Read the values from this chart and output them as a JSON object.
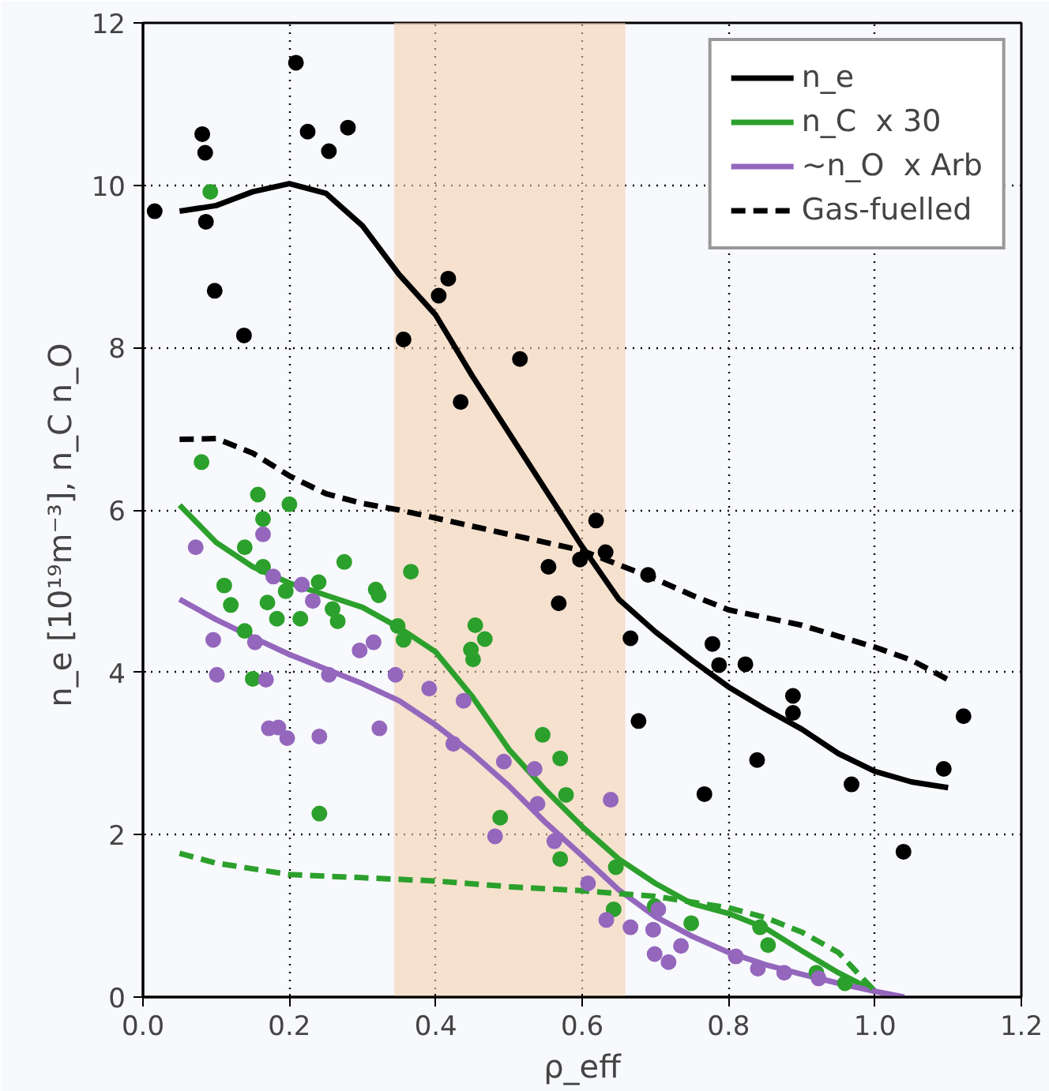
{
  "chart_data": {
    "type": "line",
    "xlabel": "ρ_eff",
    "ylabel": "n_e [10¹⁹m⁻³],   n_C  n_O",
    "xlim": [
      0,
      1.2
    ],
    "ylim": [
      0,
      12
    ],
    "xticks": [
      {
        "value": 0,
        "label": "0.0"
      },
      0.2,
      0.4,
      0.6,
      0.8,
      {
        "value": 1,
        "label": "1.0"
      },
      {
        "value": 1.2,
        "label": "1.2"
      }
    ],
    "yticks": [
      0,
      2,
      4,
      6,
      8,
      10,
      12
    ],
    "grid": true,
    "legend": "top right",
    "line_style": "solid",
    "marker": "none",
    "bands": [
      {
        "axis": "x",
        "from": 0.343,
        "to": 0.659,
        "color": "#f5d1b1"
      }
    ],
    "series": [
      {
        "type": "scatter",
        "marker": "circle",
        "color": "#000000",
        "x": [
          0.016,
          0.081,
          0.085,
          0.086,
          0.098,
          0.138,
          0.209,
          0.225,
          0.254,
          0.28,
          0.356,
          0.404,
          0.417,
          0.515,
          0.434,
          0.619,
          0.632,
          0.597,
          0.554,
          0.568,
          0.69,
          0.666,
          0.677,
          0.778,
          0.787,
          0.823,
          0.767,
          0.839,
          0.888,
          0.888,
          0.968,
          1.039,
          1.094,
          1.121
        ],
        "values": [
          9.68,
          10.63,
          10.4,
          9.55,
          8.7,
          8.15,
          11.51,
          10.66,
          10.42,
          10.71,
          8.1,
          8.64,
          8.85,
          7.86,
          7.33,
          5.87,
          5.48,
          5.39,
          5.3,
          4.85,
          5.2,
          4.42,
          3.4,
          4.35,
          4.09,
          4.1,
          2.5,
          2.92,
          3.71,
          3.5,
          2.62,
          1.79,
          2.81,
          3.46
        ]
      },
      {
        "type": "scatter",
        "marker": "circle",
        "color": "#2ca02c",
        "x": [
          0.092,
          0.08,
          0.157,
          0.164,
          0.2,
          0.139,
          0.164,
          0.111,
          0.12,
          0.17,
          0.183,
          0.195,
          0.215,
          0.24,
          0.275,
          0.259,
          0.266,
          0.318,
          0.322,
          0.366,
          0.348,
          0.356,
          0.139,
          0.15,
          0.241,
          0.454,
          0.467,
          0.448,
          0.451,
          0.546,
          0.57,
          0.578,
          0.488,
          0.57,
          0.646,
          0.643,
          0.699,
          0.749,
          0.843,
          0.854,
          0.92,
          0.959
        ],
        "values": [
          9.92,
          6.59,
          6.19,
          5.89,
          6.07,
          5.54,
          5.3,
          5.07,
          4.83,
          4.86,
          4.66,
          5.0,
          4.66,
          5.11,
          5.36,
          4.78,
          4.63,
          5.02,
          4.95,
          5.24,
          4.57,
          4.4,
          4.51,
          3.92,
          2.26,
          4.58,
          4.41,
          4.28,
          4.16,
          3.23,
          2.94,
          2.49,
          2.21,
          1.7,
          1.6,
          1.08,
          1.12,
          0.91,
          0.86,
          0.64,
          0.3,
          0.17
        ]
      },
      {
        "type": "scatter",
        "marker": "circle",
        "color": "#9467bd",
        "x": [
          0.072,
          0.164,
          0.178,
          0.217,
          0.232,
          0.096,
          0.153,
          0.101,
          0.168,
          0.254,
          0.296,
          0.315,
          0.345,
          0.391,
          0.438,
          0.172,
          0.185,
          0.197,
          0.241,
          0.323,
          0.424,
          0.493,
          0.535,
          0.539,
          0.481,
          0.562,
          0.608,
          0.639,
          0.633,
          0.666,
          0.697,
          0.704,
          0.699,
          0.718,
          0.735,
          0.81,
          0.84,
          0.876,
          0.923
        ],
        "values": [
          5.54,
          5.7,
          5.18,
          5.08,
          4.88,
          4.4,
          4.37,
          3.97,
          3.91,
          3.97,
          4.27,
          4.37,
          3.97,
          3.8,
          3.65,
          3.31,
          3.32,
          3.19,
          3.21,
          3.31,
          3.12,
          2.9,
          2.81,
          2.38,
          1.98,
          1.92,
          1.4,
          2.43,
          0.95,
          0.86,
          0.83,
          1.08,
          0.53,
          0.43,
          0.63,
          0.5,
          0.35,
          0.3,
          0.23
        ]
      },
      {
        "name": "n_e",
        "color": "#000000",
        "x": [
          0.05,
          0.1,
          0.15,
          0.2,
          0.25,
          0.3,
          0.35,
          0.4,
          0.45,
          0.5,
          0.55,
          0.6,
          0.65,
          0.7,
          0.75,
          0.8,
          0.85,
          0.9,
          0.95,
          1.0,
          1.05,
          1.1
        ],
        "values": [
          9.68,
          9.75,
          9.92,
          10.02,
          9.9,
          9.5,
          8.9,
          8.4,
          7.65,
          6.95,
          6.25,
          5.55,
          4.9,
          4.5,
          4.15,
          3.82,
          3.55,
          3.3,
          3.0,
          2.78,
          2.65,
          2.58
        ]
      },
      {
        "name": "n_C  x 30",
        "color": "#2ca02c",
        "x": [
          0.05,
          0.1,
          0.15,
          0.2,
          0.25,
          0.3,
          0.35,
          0.4,
          0.45,
          0.5,
          0.55,
          0.6,
          0.65,
          0.7,
          0.75,
          0.8,
          0.85,
          0.9,
          0.95,
          1.0
        ],
        "values": [
          6.06,
          5.6,
          5.3,
          5.1,
          4.95,
          4.8,
          4.55,
          4.25,
          3.7,
          3.05,
          2.55,
          2.1,
          1.7,
          1.4,
          1.15,
          1.03,
          0.85,
          0.57,
          0.3,
          0.07
        ]
      },
      {
        "name": "~n_O  x Arb",
        "color": "#9467bd",
        "x": [
          0.05,
          0.1,
          0.15,
          0.2,
          0.25,
          0.3,
          0.35,
          0.4,
          0.45,
          0.5,
          0.55,
          0.6,
          0.65,
          0.7,
          0.75,
          0.8,
          0.85,
          0.9,
          0.95,
          1.0,
          1.04
        ],
        "values": [
          4.9,
          4.65,
          4.43,
          4.22,
          4.04,
          3.86,
          3.65,
          3.35,
          3.0,
          2.6,
          2.15,
          1.74,
          1.32,
          0.99,
          0.75,
          0.55,
          0.4,
          0.28,
          0.17,
          0.07,
          0.0
        ]
      },
      {
        "name": "Gas-fuelled",
        "line_style": "dashed",
        "color": "#000000",
        "x": [
          0.05,
          0.1,
          0.15,
          0.2,
          0.25,
          0.3,
          0.35,
          0.4,
          0.5,
          0.6,
          0.7,
          0.75,
          0.8,
          0.9,
          1.0,
          1.05,
          1.1
        ],
        "values": [
          6.87,
          6.88,
          6.7,
          6.42,
          6.2,
          6.08,
          6.0,
          5.9,
          5.7,
          5.5,
          5.15,
          4.95,
          4.77,
          4.58,
          4.31,
          4.15,
          3.91
        ]
      },
      {
        "line_style": "dashed",
        "color": "#2ca02c",
        "x": [
          0.05,
          0.1,
          0.2,
          0.3,
          0.4,
          0.5,
          0.6,
          0.7,
          0.8,
          0.85,
          0.9,
          0.95,
          1.0
        ],
        "values": [
          1.77,
          1.65,
          1.51,
          1.47,
          1.43,
          1.36,
          1.31,
          1.24,
          1.1,
          0.98,
          0.8,
          0.55,
          0.07
        ]
      }
    ]
  }
}
